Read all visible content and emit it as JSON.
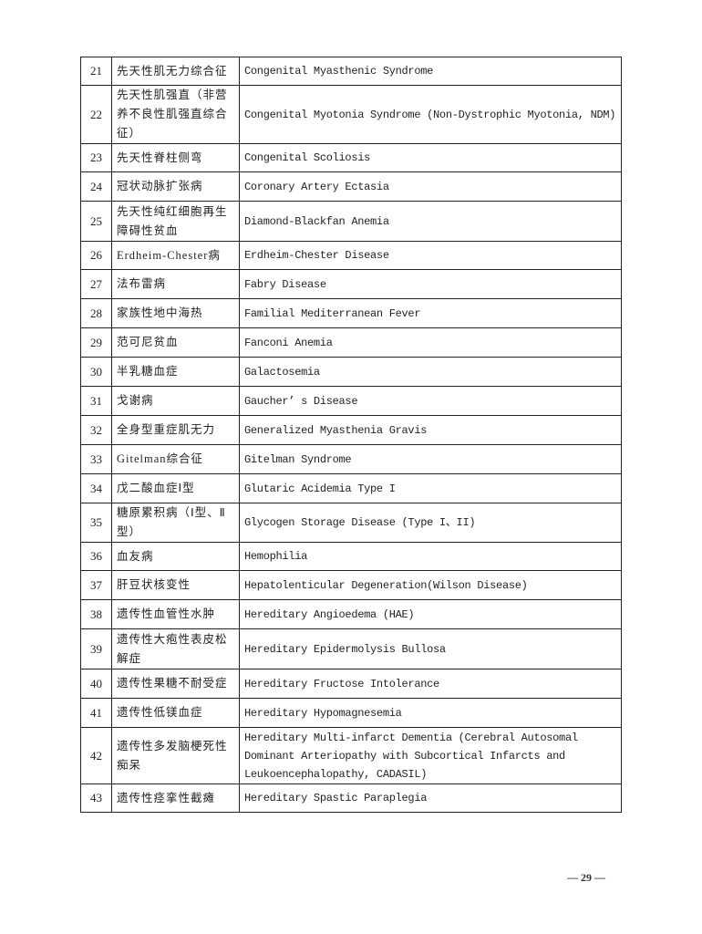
{
  "rows": [
    {
      "no": "21",
      "zh": "先天性肌无力综合征",
      "en": "Congenital Myasthenic Syndrome"
    },
    {
      "no": "22",
      "zh": "先天性肌强直（非营养不良性肌强直综合征）",
      "en": "Congenital Myotonia Syndrome (Non-Dystrophic Myotonia, NDM)"
    },
    {
      "no": "23",
      "zh": "先天性脊柱侧弯",
      "en": "Congenital Scoliosis"
    },
    {
      "no": "24",
      "zh": "冠状动脉扩张病",
      "en": "Coronary Artery Ectasia"
    },
    {
      "no": "25",
      "zh": "先天性纯红细胞再生障碍性贫血",
      "en": "Diamond-Blackfan Anemia"
    },
    {
      "no": "26",
      "zh": "Erdheim-Chester病",
      "en": "Erdheim-Chester Disease"
    },
    {
      "no": "27",
      "zh": "法布雷病",
      "en": "Fabry Disease"
    },
    {
      "no": "28",
      "zh": "家族性地中海热",
      "en": "Familial Mediterranean Fever"
    },
    {
      "no": "29",
      "zh": "范可尼贫血",
      "en": "Fanconi Anemia"
    },
    {
      "no": "30",
      "zh": "半乳糖血症",
      "en": "Galactosemia"
    },
    {
      "no": "31",
      "zh": "戈谢病",
      "en": "Gaucher’ s Disease"
    },
    {
      "no": "32",
      "zh": "全身型重症肌无力",
      "en": "Generalized Myasthenia Gravis"
    },
    {
      "no": "33",
      "zh": "Gitelman综合征",
      "en": "Gitelman Syndrome"
    },
    {
      "no": "34",
      "zh": "戊二酸血症Ⅰ型",
      "en": "Glutaric Acidemia Type I"
    },
    {
      "no": "35",
      "zh": "糖原累积病（Ⅰ型、Ⅱ型）",
      "en": "Glycogen Storage Disease (Type I、II)"
    },
    {
      "no": "36",
      "zh": "血友病",
      "en": "Hemophilia"
    },
    {
      "no": "37",
      "zh": "肝豆状核变性",
      "en": "Hepatolenticular Degeneration(Wilson Disease)"
    },
    {
      "no": "38",
      "zh": "遗传性血管性水肿",
      "en": "Hereditary Angioedema (HAE)"
    },
    {
      "no": "39",
      "zh": "遗传性大疱性表皮松解症",
      "en": "Hereditary Epidermolysis Bullosa"
    },
    {
      "no": "40",
      "zh": "遗传性果糖不耐受症",
      "en": "Hereditary Fructose Intolerance"
    },
    {
      "no": "41",
      "zh": "遗传性低镁血症",
      "en": "Hereditary Hypomagnesemia"
    },
    {
      "no": "42",
      "zh": "遗传性多发脑梗死性痴呆",
      "en": "Hereditary Multi-infarct Dementia (Cerebral Autosomal Dominant Arteriopathy with Subcortical Infarcts and Leukoencephalopathy, CADASIL)"
    },
    {
      "no": "43",
      "zh": "遗传性痉挛性截瘫",
      "en": "Hereditary Spastic Paraplegia"
    }
  ],
  "page_number": "— 29 —"
}
